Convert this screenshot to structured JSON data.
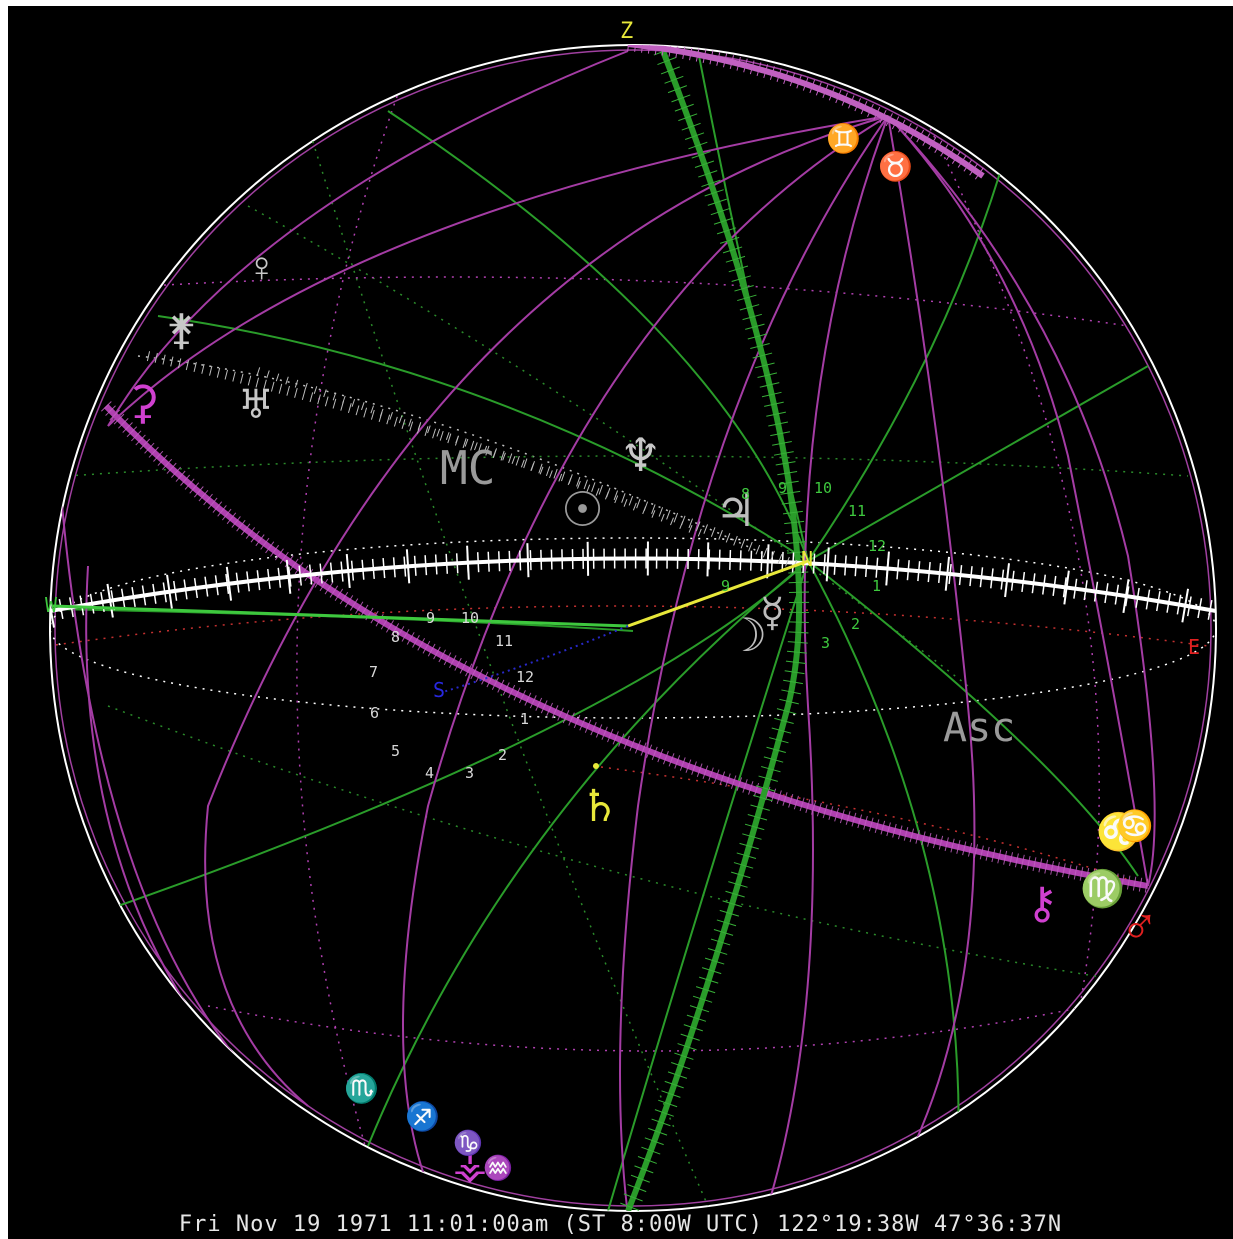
{
  "footer_text": "Fri Nov 19 1971 11:01:00am (ST 8:00W UTC) 122°19:38W 47°36:37N",
  "colors": {
    "background": "#000000",
    "horizon": "#ffffff",
    "ecliptic": "#b43cb4",
    "equator": "#2a9c2a",
    "zenith_label": "#e8e83a",
    "east_label": "#e02020",
    "nadir_label": "#2020e0"
  },
  "directions": {
    "zenith": "Z",
    "north": "N",
    "west": "W",
    "east": "E",
    "south": "S"
  },
  "points": {
    "midheaven": "MC",
    "ascendant": "Asc"
  },
  "planets": [
    {
      "name": "saturn",
      "glyph": "♄",
      "color": "#e8e83a"
    },
    {
      "name": "mars",
      "glyph": "♂",
      "color": "#e02020"
    },
    {
      "name": "neptune",
      "glyph": "♆",
      "color": "#c8c8c8"
    },
    {
      "name": "jupiter",
      "glyph": "♃",
      "color": "#c8c8c8"
    },
    {
      "name": "uranus",
      "glyph": "♅",
      "color": "#c8c8c8"
    },
    {
      "name": "moon",
      "glyph": "☽",
      "color": "#c8c8c8"
    },
    {
      "name": "mercury",
      "glyph": "☿",
      "color": "#c8c8c8"
    },
    {
      "name": "venus",
      "glyph": "♀",
      "color": "#c8c8c8"
    },
    {
      "name": "sun",
      "glyph": "☉",
      "color": "#c8c8c8"
    },
    {
      "name": "juno",
      "glyph": "⚵",
      "color": "#d040d0"
    },
    {
      "name": "chiron",
      "glyph": "⚷",
      "color": "#d040d0"
    },
    {
      "name": "ceres",
      "glyph": "⚳",
      "color": "#d040d0"
    },
    {
      "name": "vesta",
      "glyph": "⚶",
      "color": "#c8c8c8"
    }
  ],
  "signs": [
    {
      "name": "gemini",
      "glyph": "♊"
    },
    {
      "name": "taurus",
      "glyph": "♉"
    },
    {
      "name": "scorpio",
      "glyph": "♏"
    },
    {
      "name": "sagittarius",
      "glyph": "♐"
    },
    {
      "name": "capricorn",
      "glyph": "♑"
    },
    {
      "name": "aquarius",
      "glyph": "♒"
    },
    {
      "name": "virgo",
      "glyph": "♍"
    },
    {
      "name": "leo",
      "glyph": "♌"
    },
    {
      "name": "cancer",
      "glyph": "♋"
    }
  ],
  "house_numbers_green": [
    "9",
    "10",
    "11",
    "12",
    "1",
    "2",
    "3",
    "8",
    "9"
  ],
  "house_numbers_white": [
    "9",
    "10",
    "11",
    "12",
    "8",
    "7",
    "6",
    "5",
    "4",
    "3",
    "2",
    "1"
  ]
}
